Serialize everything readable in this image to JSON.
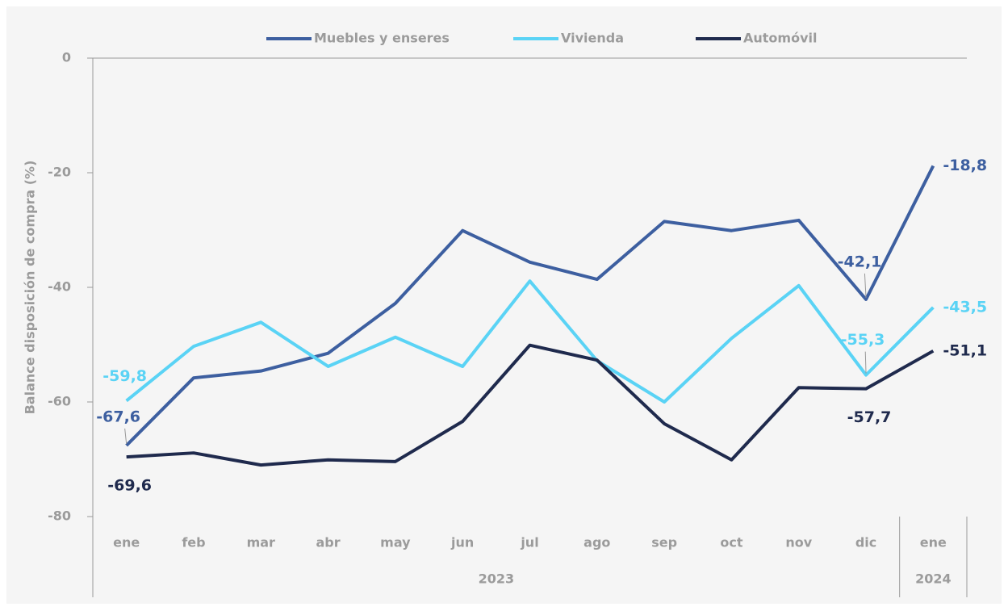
{
  "chart_data": {
    "type": "line",
    "y_label": "Balance disposición de compra (%)",
    "groups": [
      {
        "label": "2023",
        "categories": [
          "ene",
          "feb",
          "mar",
          "abr",
          "may",
          "jun",
          "jul",
          "ago",
          "sep",
          "oct",
          "nov",
          "dic"
        ]
      },
      {
        "label": "2024",
        "categories": [
          "ene"
        ]
      }
    ],
    "series": [
      {
        "name": "Muebles y enseres",
        "color": "#3d5fa0",
        "values": [
          -67.6,
          -55.8,
          -54.6,
          -51.5,
          -42.8,
          -30.1,
          -35.6,
          -38.6,
          -28.5,
          -30.1,
          -28.3,
          -42.1,
          -18.8
        ],
        "value_labels": [
          "-67,6",
          null,
          null,
          null,
          null,
          null,
          null,
          null,
          null,
          null,
          null,
          "-42,1",
          "-18,8"
        ]
      },
      {
        "name": "Vivienda",
        "color": "#5ad3f5",
        "values": [
          -59.8,
          -50.3,
          -46.1,
          -53.8,
          -48.7,
          -53.8,
          -38.9,
          -52.8,
          -60.0,
          -48.9,
          -39.7,
          -55.3,
          -43.5
        ],
        "value_labels": [
          "-59,8",
          null,
          null,
          null,
          null,
          null,
          null,
          null,
          null,
          null,
          null,
          "-55,3",
          "-43,5"
        ]
      },
      {
        "name": "Automóvil",
        "color": "#1f2a4d",
        "values": [
          -69.6,
          -68.9,
          -71.0,
          -70.1,
          -70.4,
          -63.4,
          -50.1,
          -52.7,
          -63.8,
          -70.1,
          -57.5,
          -57.7,
          -51.1
        ],
        "value_labels": [
          "-69,6",
          null,
          null,
          null,
          null,
          null,
          null,
          null,
          null,
          null,
          null,
          "-57,7",
          "-51,1"
        ]
      }
    ],
    "ylim": [
      -80,
      0
    ],
    "yticks": [
      0,
      -20,
      -40,
      -60,
      -80
    ],
    "grid": false,
    "legend": "top"
  }
}
